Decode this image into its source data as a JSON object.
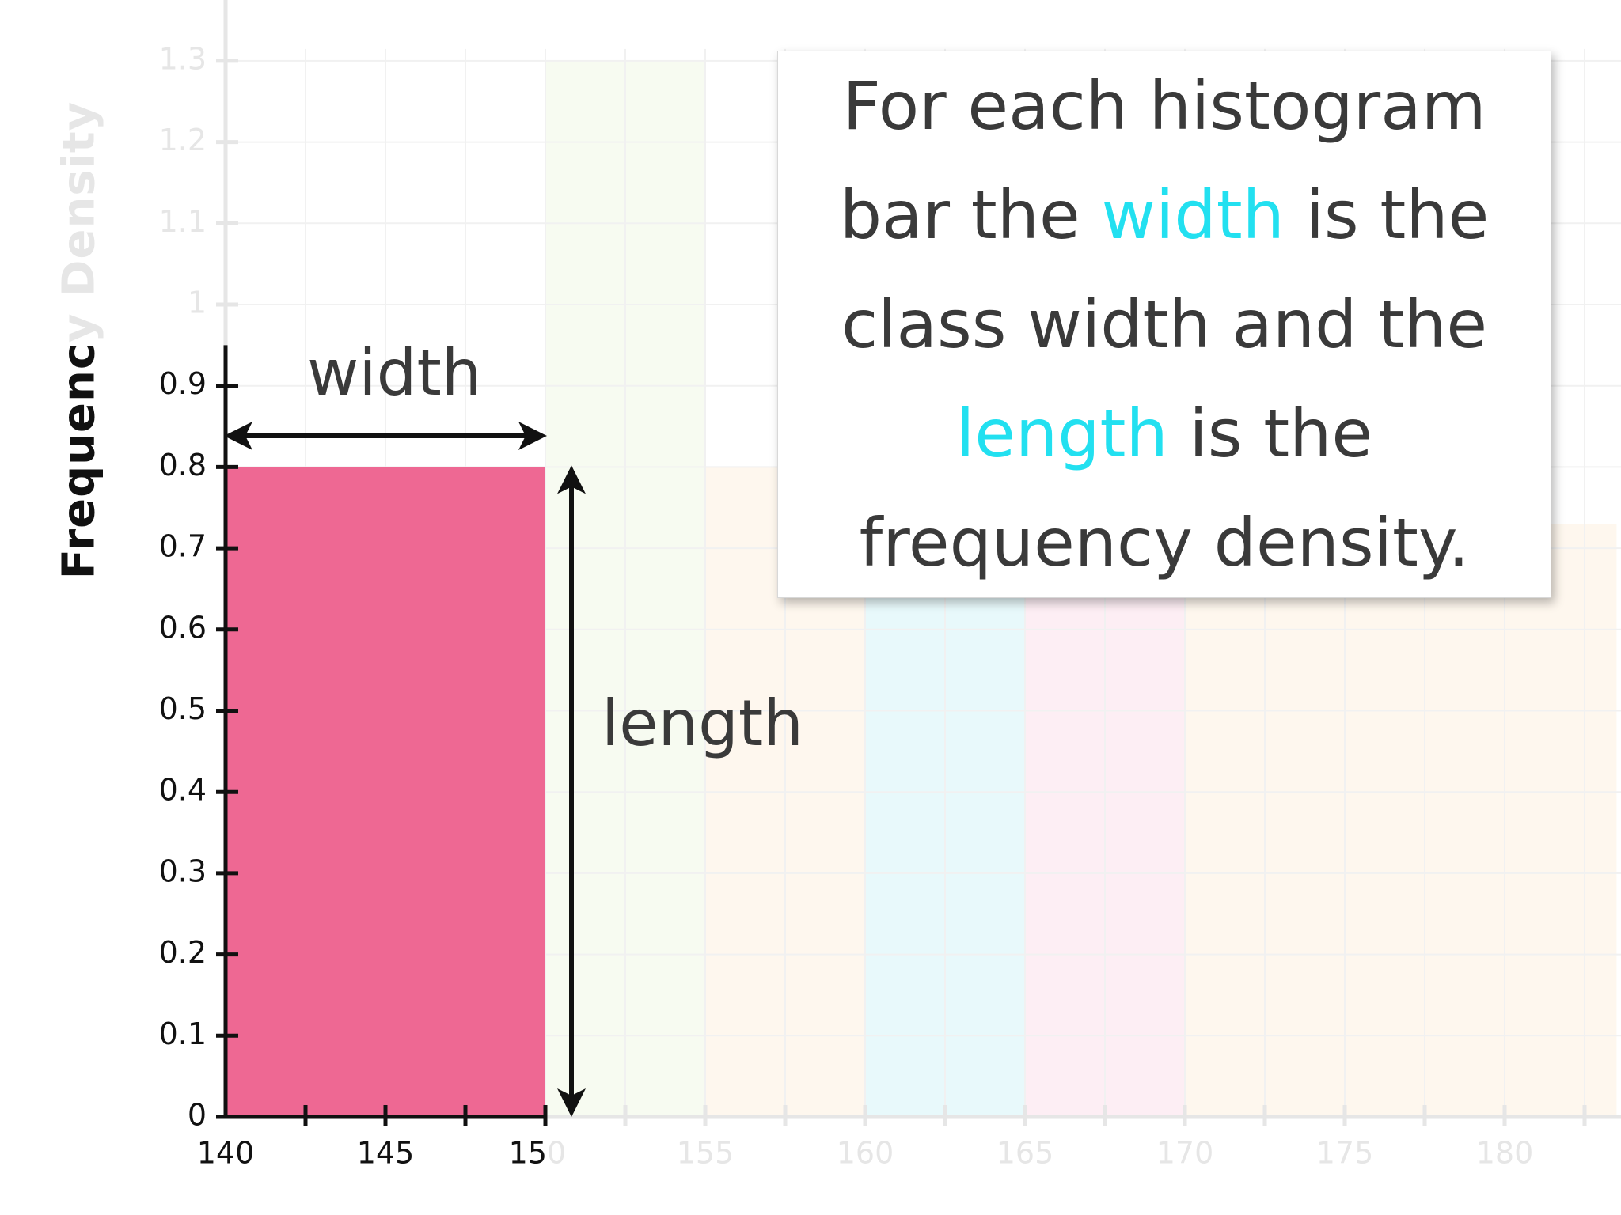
{
  "chart_data": {
    "type": "bar",
    "ylabel": {
      "visible": "Frequenc",
      "faded": "y Density"
    },
    "xlim": [
      140,
      183.5
    ],
    "ylim": [
      0,
      1.3
    ],
    "y_ticks_active": [
      "0",
      "0.1",
      "0.2",
      "0.3",
      "0.4",
      "0.5",
      "0.6",
      "0.7",
      "0.8",
      "0.9"
    ],
    "y_ticks_faded": [
      "1",
      "1.1",
      "1.2",
      "1.3"
    ],
    "x_ticks_active": [
      "140",
      "145",
      "15"
    ],
    "x_tick_150_faded_digit": "0",
    "x_ticks_faded": [
      "155",
      "160",
      "165",
      "170",
      "175",
      "180"
    ],
    "highlighted_bar": {
      "x_start": 140,
      "x_end": 150,
      "frequency_density": 0.8,
      "color": "#ee6893"
    },
    "background_bars": [
      {
        "x_start": 150,
        "x_end": 155,
        "frequency_density": 1.3,
        "color": "#f7fbf1"
      },
      {
        "x_start": 155,
        "x_end": 160,
        "frequency_density": 0.8,
        "color": "#fef7ee"
      },
      {
        "x_start": 160,
        "x_end": 165,
        "frequency_density": 1.3,
        "color": "#e8f9fb"
      },
      {
        "x_start": 165,
        "x_end": 170,
        "frequency_density": 1.3,
        "color": "#fdeef4"
      },
      {
        "x_start": 170,
        "x_end": 183.5,
        "frequency_density": 0.73,
        "color": "#fef7ee"
      }
    ],
    "annotations": {
      "width_label": "width",
      "length_label": "length"
    },
    "grid": true
  },
  "callout": {
    "line1": "For each histogram",
    "line2_a": "bar the ",
    "line2_hl": "width",
    "line2_b": " is the",
    "line3": "class width and the",
    "line4_hl": "length",
    "line4_b": " is the",
    "line5": "frequency density."
  },
  "colors": {
    "accent": "#22e0f0",
    "bar": "#ee6893",
    "axis": "#111111",
    "faded": "#e6e6e6"
  }
}
